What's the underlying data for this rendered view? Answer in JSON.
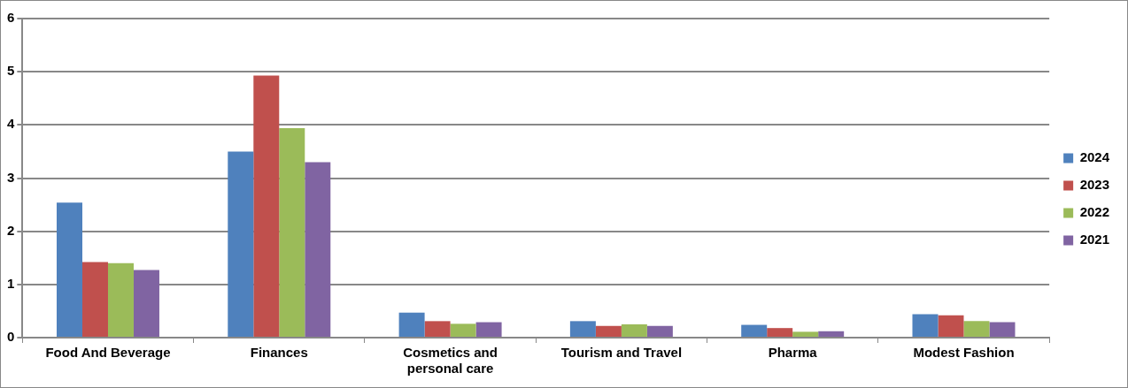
{
  "chart_data": {
    "type": "bar",
    "categories": [
      "Food And Beverage",
      "Finances",
      "Cosmetics and personal care",
      "Tourism and Travel",
      "Pharma",
      "Modest Fashion"
    ],
    "series": [
      {
        "name": "2024",
        "color": "#4f81bd",
        "values": [
          2.54,
          3.5,
          0.47,
          0.31,
          0.24,
          0.44
        ]
      },
      {
        "name": "2023",
        "color": "#c0504d",
        "values": [
          1.42,
          4.93,
          0.31,
          0.22,
          0.18,
          0.42
        ]
      },
      {
        "name": "2022",
        "color": "#9bbb59",
        "values": [
          1.4,
          3.94,
          0.26,
          0.25,
          0.11,
          0.31
        ]
      },
      {
        "name": "2021",
        "color": "#8064a2",
        "values": [
          1.27,
          3.3,
          0.29,
          0.22,
          0.12,
          0.29
        ]
      }
    ],
    "ylim": [
      0,
      6
    ],
    "yticks": [
      0,
      1,
      2,
      3,
      4,
      5,
      6
    ],
    "grid": "y",
    "legend": "right"
  }
}
